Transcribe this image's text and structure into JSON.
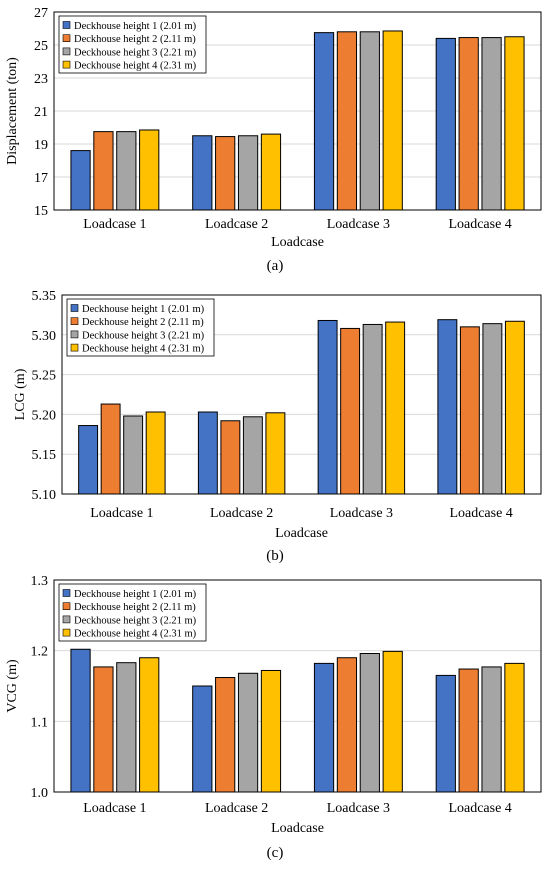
{
  "chart_data": [
    {
      "type": "bar",
      "panel_label": "(a)",
      "categories": [
        "Loadcase 1",
        "Loadcase 2",
        "Loadcase 3",
        "Loadcase 4"
      ],
      "series": [
        {
          "name": "Deckhouse height 1 (2.01 m)",
          "values": [
            18.6,
            19.5,
            25.75,
            25.4
          ]
        },
        {
          "name": "Deckhouse height 2 (2.11 m)",
          "values": [
            19.75,
            19.45,
            25.8,
            25.45
          ]
        },
        {
          "name": "Deckhouse height 3 (2.21 m)",
          "values": [
            19.75,
            19.5,
            25.8,
            25.45
          ]
        },
        {
          "name": "Deckhouse height 4 (2.31 m)",
          "values": [
            19.85,
            19.6,
            25.85,
            25.5
          ]
        }
      ],
      "xlabel": "Loadcase",
      "ylabel": "Displacement (ton)",
      "ylim": [
        15,
        27
      ],
      "yticks": [
        "15",
        "17",
        "19",
        "21",
        "23",
        "25",
        "27"
      ],
      "legend_position": "top-left"
    },
    {
      "type": "bar",
      "panel_label": "(b)",
      "categories": [
        "Loadcase 1",
        "Loadcase 2",
        "Loadcase 3",
        "Loadcase 4"
      ],
      "series": [
        {
          "name": "Deckhouse height 1 (2.01 m)",
          "values": [
            5.186,
            5.203,
            5.318,
            5.319
          ]
        },
        {
          "name": "Deckhouse height 2 (2.11 m)",
          "values": [
            5.213,
            5.192,
            5.308,
            5.31
          ]
        },
        {
          "name": "Deckhouse height 3 (2.21 m)",
          "values": [
            5.198,
            5.197,
            5.313,
            5.314
          ]
        },
        {
          "name": "Deckhouse height 4 (2.31 m)",
          "values": [
            5.203,
            5.202,
            5.316,
            5.317
          ]
        }
      ],
      "xlabel": "Loadcase",
      "ylabel": "LCG (m)",
      "ylim": [
        5.1,
        5.35
      ],
      "yticks": [
        "5.10",
        "5.15",
        "5.20",
        "5.25",
        "5.30",
        "5.35"
      ],
      "legend_position": "top-left"
    },
    {
      "type": "bar",
      "panel_label": "(c)",
      "categories": [
        "Loadcase 1",
        "Loadcase 2",
        "Loadcase 3",
        "Loadcase 4"
      ],
      "series": [
        {
          "name": "Deckhouse height 1 (2.01 m)",
          "values": [
            1.202,
            1.15,
            1.182,
            1.165
          ]
        },
        {
          "name": "Deckhouse height 2 (2.11 m)",
          "values": [
            1.177,
            1.162,
            1.19,
            1.174
          ]
        },
        {
          "name": "Deckhouse height 3 (2.21 m)",
          "values": [
            1.183,
            1.168,
            1.196,
            1.177
          ]
        },
        {
          "name": "Deckhouse height 4 (2.31 m)",
          "values": [
            1.19,
            1.172,
            1.199,
            1.182
          ]
        }
      ],
      "xlabel": "Loadcase",
      "ylabel": "VCG (m)",
      "ylim": [
        1.0,
        1.3
      ],
      "yticks": [
        "1.0",
        "1.1",
        "1.2",
        "1.3"
      ],
      "legend_position": "top-left"
    }
  ],
  "colors": {
    "series": [
      "#4472C4",
      "#ED7D31",
      "#A5A5A5",
      "#FFC000"
    ],
    "bar_outline": "#000000",
    "axis": "#000000",
    "gridline": "#D9D9D9"
  }
}
